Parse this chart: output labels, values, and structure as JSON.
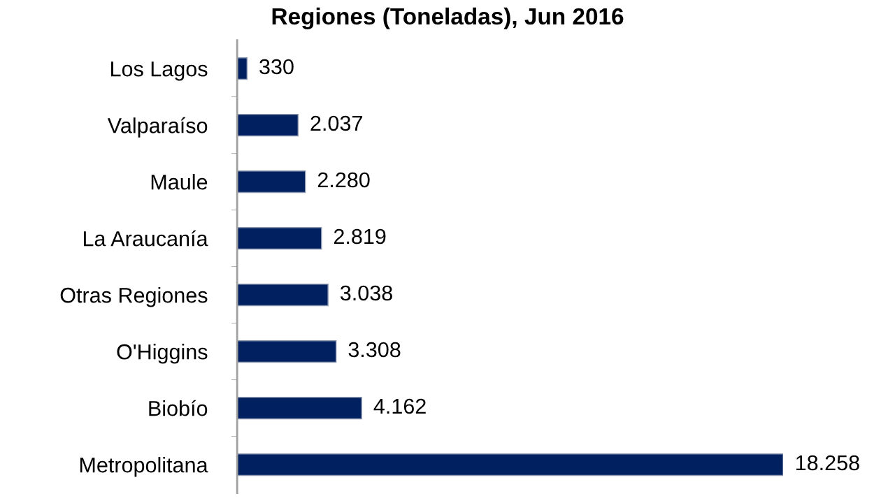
{
  "chart_data": {
    "type": "bar",
    "orientation": "horizontal",
    "title": "Regiones (Toneladas), Jun 2016",
    "categories": [
      "Los Lagos",
      "Valparaíso",
      "Maule",
      "La Araucanía",
      "Otras Regiones",
      "O'Higgins",
      "Biobío",
      "Metropolitana"
    ],
    "values": [
      330,
      2037,
      2280,
      2819,
      3038,
      3308,
      4162,
      18258
    ],
    "value_labels": [
      "330",
      "2.037",
      "2.280",
      "2.819",
      "3.038",
      "3.308",
      "4.162",
      "18.258"
    ],
    "color": "#002060",
    "grid": false,
    "legend": false
  }
}
